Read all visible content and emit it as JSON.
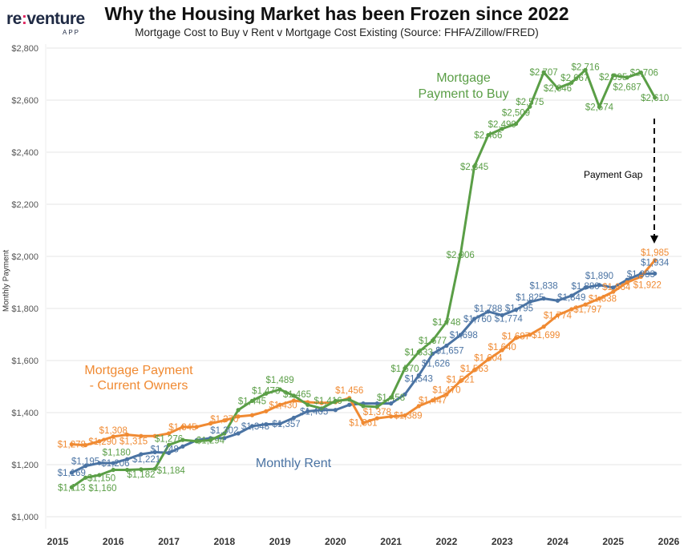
{
  "header": {
    "title": "Why the Housing Market has been Frozen since 2022",
    "subtitle": "Mortgage Cost to Buy v Rent v Mortgage Cost Existing (Source: FHFA/Zillow/FRED)",
    "logo_main_a": "re",
    "logo_colon": ":",
    "logo_main_b": "venture",
    "logo_sub": "APP"
  },
  "chart_data": {
    "type": "line",
    "title": "Why the Housing Market has been Frozen since 2022",
    "subtitle": "Mortgage Cost to Buy v Rent v Mortgage Cost Existing (Source: FHFA/Zillow/FRED)",
    "xlabel": "",
    "ylabel": "Monthly Payment",
    "xlim": [
      2015,
      2026
    ],
    "ylim": [
      1000,
      2800
    ],
    "x_ticks": [
      "2015",
      "2016",
      "2017",
      "2018",
      "2019",
      "2020",
      "2021",
      "2022",
      "2023",
      "2024",
      "2025",
      "2026"
    ],
    "y_ticks": [
      "$1,000",
      "$1,200",
      "$1,400",
      "$1,600",
      "$1,800",
      "$2,000",
      "$2,200",
      "$2,400",
      "$2,600",
      "$2,800"
    ],
    "grid": "horizontal",
    "x": [
      2015.25,
      2015.5,
      2015.75,
      2016,
      2016.25,
      2016.5,
      2016.75,
      2017,
      2017.25,
      2017.5,
      2017.75,
      2018,
      2018.25,
      2018.5,
      2018.75,
      2019,
      2019.25,
      2019.5,
      2019.75,
      2020,
      2020.25,
      2020.5,
      2020.75,
      2021,
      2021.25,
      2021.5,
      2021.75,
      2022,
      2022.25,
      2022.5,
      2022.75,
      2023,
      2023.25,
      2023.5,
      2023.75,
      2024,
      2024.25,
      2024.5,
      2024.75,
      2025,
      2025.25,
      2025.5,
      2025.75
    ],
    "series": [
      {
        "name": "Mortgage Payment to Buy",
        "color": "#5a9e46",
        "values": [
          1113,
          1150,
          1160,
          1180,
          1180,
          1182,
          1184,
          1276,
          1295,
          1290,
          1294,
          1320,
          1410,
          1445,
          1473,
          1489,
          1465,
          1430,
          1416,
          1445,
          1450,
          1425,
          1422,
          1458,
          1570,
          1633,
          1677,
          1748,
          2006,
          2345,
          2466,
          2490,
          2509,
          2575,
          2707,
          2646,
          2667,
          2716,
          2574,
          2695,
          2687,
          2706,
          2610
        ],
        "labeled_points": [
          0,
          1,
          2,
          3,
          5,
          6,
          7,
          10,
          13,
          14,
          15,
          16,
          18,
          23,
          24,
          25,
          26,
          27,
          28,
          29,
          30,
          31,
          32,
          33,
          34,
          35,
          36,
          37,
          38,
          39,
          40,
          41,
          42
        ]
      },
      {
        "name": "Monthly Rent",
        "color": "#4a73a3",
        "values": [
          1169,
          1195,
          1206,
          1206,
          1221,
          1240,
          1248,
          1245,
          1270,
          1294,
          1302,
          1302,
          1320,
          1348,
          1355,
          1357,
          1380,
          1405,
          1410,
          1410,
          1430,
          1435,
          1435,
          1435,
          1470,
          1543,
          1626,
          1657,
          1698,
          1760,
          1788,
          1774,
          1795,
          1825,
          1838,
          1830,
          1849,
          1880,
          1890,
          1880,
          1910,
          1933,
          1934
        ],
        "labeled_points": [
          0,
          1,
          2,
          4,
          6,
          11,
          13,
          15,
          17,
          25,
          26,
          27,
          28,
          29,
          30,
          31,
          32,
          33,
          34,
          36,
          37,
          38,
          41,
          42
        ]
      },
      {
        "name": "Mortgage Payment - Current Owners",
        "color": "#f08a32",
        "values": [
          1278,
          1275,
          1290,
          1308,
          1315,
          1310,
          1310,
          1320,
          1345,
          1345,
          1358,
          1370,
          1385,
          1390,
          1405,
          1430,
          1446,
          1440,
          1437,
          1440,
          1456,
          1361,
          1378,
          1385,
          1389,
          1425,
          1447,
          1470,
          1521,
          1563,
          1604,
          1640,
          1687,
          1699,
          1730,
          1774,
          1797,
          1815,
          1838,
          1864,
          1900,
          1922,
          1985
        ],
        "labeled_points": [
          0,
          2,
          3,
          4,
          8,
          11,
          15,
          20,
          21,
          22,
          24,
          26,
          27,
          28,
          29,
          30,
          31,
          32,
          33,
          35,
          36,
          38,
          39,
          41,
          42
        ]
      }
    ],
    "annotations": {
      "buy_line1": "Mortgage",
      "buy_line2": "Payment to Buy",
      "owners_line1": "Mortgage Payment",
      "owners_line2": "- Current Owners",
      "rent": "Monthly Rent",
      "gap": "Payment Gap"
    }
  }
}
